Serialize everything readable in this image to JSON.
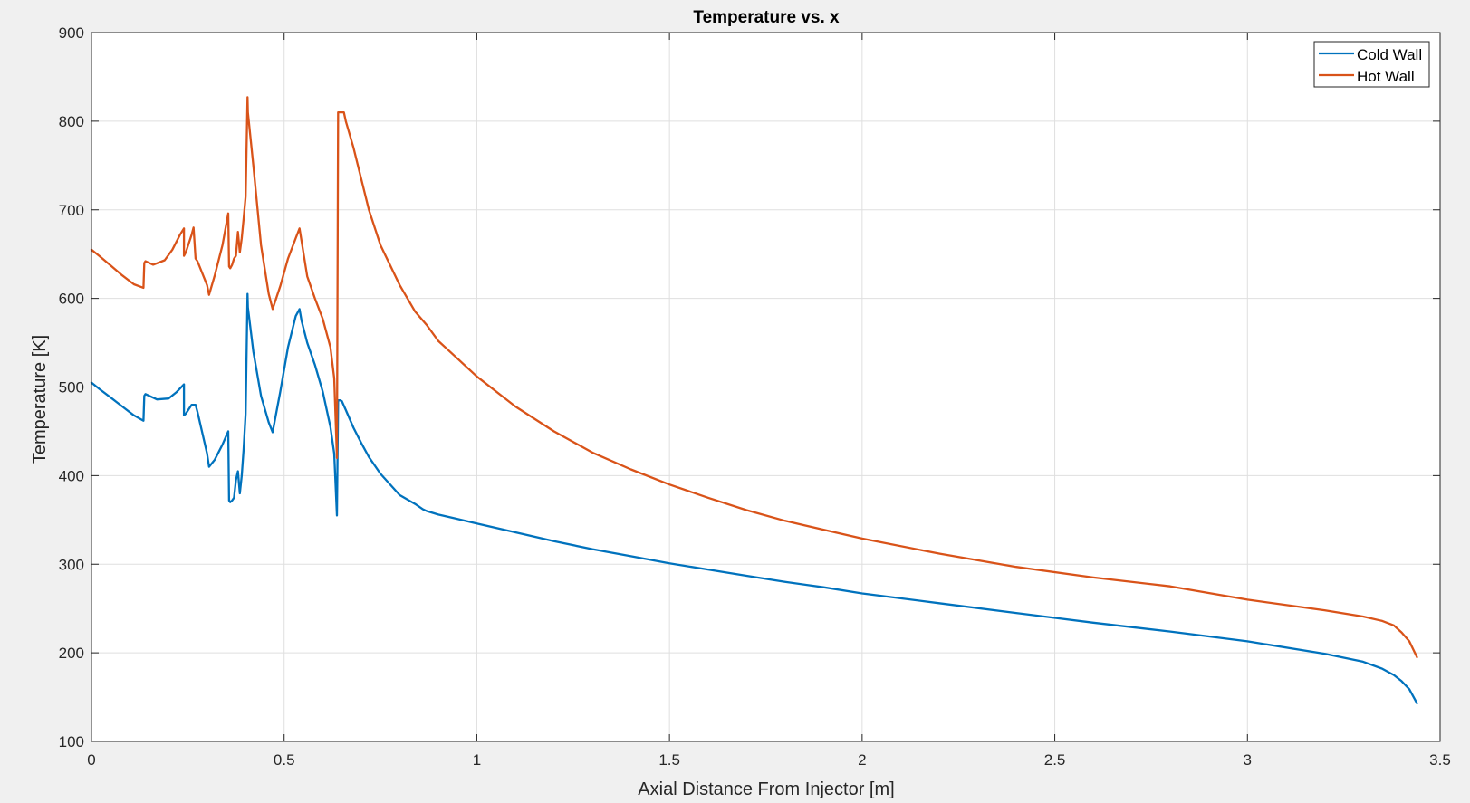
{
  "chart_data": {
    "type": "line",
    "title": "Temperature vs. x",
    "xlabel": "Axial Distance From Injector [m]",
    "ylabel": "Temperature [K]",
    "xlim": [
      0,
      3.5
    ],
    "ylim": [
      100,
      900
    ],
    "xticks": [
      0,
      0.5,
      1,
      1.5,
      2,
      2.5,
      3,
      3.5
    ],
    "xtick_labels": [
      "0",
      "0.5",
      "1",
      "1.5",
      "2",
      "2.5",
      "3",
      "3.5"
    ],
    "yticks": [
      100,
      200,
      300,
      400,
      500,
      600,
      700,
      800,
      900
    ],
    "ytick_labels": [
      "100",
      "200",
      "300",
      "400",
      "500",
      "600",
      "700",
      "800",
      "900"
    ],
    "grid": true,
    "legend_position": "top-right",
    "series": [
      {
        "name": "Cold Wall",
        "color": "#0072bd",
        "x": [
          0,
          0.02,
          0.05,
          0.08,
          0.11,
          0.135,
          0.137,
          0.14,
          0.17,
          0.2,
          0.22,
          0.24,
          0.24,
          0.245,
          0.26,
          0.27,
          0.275,
          0.3,
          0.305,
          0.32,
          0.34,
          0.355,
          0.357,
          0.36,
          0.365,
          0.37,
          0.375,
          0.38,
          0.385,
          0.39,
          0.395,
          0.4,
          0.405,
          0.406,
          0.42,
          0.44,
          0.46,
          0.47,
          0.49,
          0.51,
          0.53,
          0.54,
          0.545,
          0.56,
          0.58,
          0.6,
          0.62,
          0.63,
          0.637,
          0.64,
          0.641,
          0.645,
          0.65,
          0.66,
          0.68,
          0.7,
          0.72,
          0.75,
          0.8,
          0.84,
          0.86,
          0.87,
          0.9,
          0.95,
          1.0,
          1.1,
          1.2,
          1.3,
          1.4,
          1.5,
          1.6,
          1.7,
          1.8,
          1.9,
          2.0,
          2.2,
          2.4,
          2.6,
          2.8,
          3.0,
          3.2,
          3.3,
          3.35,
          3.38,
          3.4,
          3.42,
          3.44
        ],
        "y": [
          505,
          498,
          488,
          478,
          468,
          462,
          490,
          492,
          486,
          487,
          494,
          503,
          468,
          470,
          480,
          480,
          472,
          425,
          410,
          418,
          435,
          450,
          372,
          370,
          372,
          375,
          395,
          405,
          380,
          400,
          430,
          470,
          605,
          590,
          540,
          490,
          460,
          449,
          495,
          545,
          580,
          588,
          575,
          550,
          525,
          495,
          455,
          425,
          355,
          484,
          485,
          485,
          484,
          474,
          454,
          437,
          421,
          402,
          378,
          368,
          362,
          360,
          356,
          351,
          346,
          336,
          326,
          317,
          309,
          301,
          294,
          287,
          280,
          274,
          267,
          256,
          245,
          234,
          224,
          213,
          199,
          190,
          182,
          175,
          168,
          159,
          143
        ]
      },
      {
        "name": "Hot Wall",
        "color": "#d95319",
        "x": [
          0,
          0.02,
          0.05,
          0.08,
          0.11,
          0.135,
          0.137,
          0.14,
          0.16,
          0.19,
          0.21,
          0.23,
          0.24,
          0.24,
          0.245,
          0.26,
          0.265,
          0.27,
          0.275,
          0.3,
          0.305,
          0.32,
          0.34,
          0.355,
          0.357,
          0.36,
          0.365,
          0.37,
          0.375,
          0.38,
          0.385,
          0.39,
          0.395,
          0.4,
          0.405,
          0.406,
          0.42,
          0.44,
          0.46,
          0.47,
          0.49,
          0.51,
          0.53,
          0.54,
          0.545,
          0.56,
          0.58,
          0.6,
          0.62,
          0.63,
          0.637,
          0.64,
          0.641,
          0.65,
          0.655,
          0.66,
          0.68,
          0.7,
          0.72,
          0.75,
          0.8,
          0.84,
          0.86,
          0.87,
          0.9,
          0.95,
          1.0,
          1.1,
          1.2,
          1.3,
          1.4,
          1.5,
          1.6,
          1.7,
          1.8,
          1.9,
          2.0,
          2.2,
          2.4,
          2.6,
          2.8,
          3.0,
          3.2,
          3.3,
          3.35,
          3.38,
          3.4,
          3.42,
          3.44
        ],
        "y": [
          655,
          648,
          637,
          626,
          616,
          612,
          640,
          642,
          638,
          643,
          655,
          672,
          679,
          648,
          652,
          672,
          680,
          645,
          642,
          615,
          604,
          626,
          660,
          696,
          636,
          634,
          638,
          645,
          648,
          675,
          652,
          668,
          690,
          715,
          827,
          810,
          750,
          660,
          605,
          588,
          614,
          645,
          668,
          679,
          665,
          625,
          600,
          577,
          545,
          510,
          420,
          810,
          810,
          810,
          810,
          800,
          770,
          735,
          700,
          660,
          615,
          585,
          575,
          570,
          552,
          532,
          512,
          478,
          450,
          426,
          407,
          390,
          375,
          361,
          349,
          339,
          329,
          312,
          297,
          285,
          275,
          260,
          248,
          241,
          236,
          231,
          223,
          213,
          195
        ]
      }
    ]
  }
}
